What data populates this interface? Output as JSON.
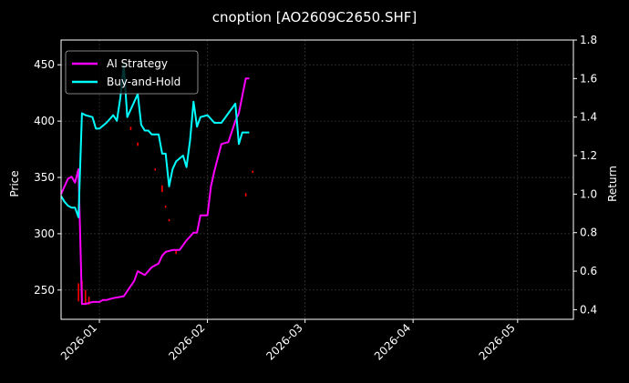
{
  "chart_data": {
    "type": "line",
    "title": "cnoption [AO2609C2650.SHF]",
    "xlabel": "",
    "ylabel": "Price",
    "y2label": "Return",
    "grid": true,
    "legend_position": "top-left",
    "xlim": [
      "2026-12-21",
      "2026-05-17"
    ],
    "ylim": [
      224,
      472
    ],
    "y2lim": [
      0.35,
      1.8
    ],
    "x_ticks": [
      "2026-01",
      "2026-02",
      "2026-03",
      "2026-04",
      "2026-05"
    ],
    "y_ticks": [
      250,
      300,
      350,
      400,
      450
    ],
    "y2_ticks": [
      "0.4",
      "0.6",
      "0.8",
      "1.0",
      "1.2",
      "1.4",
      "1.6",
      "1.8"
    ],
    "colors": {
      "ai": "#ff00ff",
      "bh": "#00ffff",
      "candle": "#ff0000",
      "grid": "#444444",
      "axis": "#ffffff"
    },
    "series": [
      {
        "name": "AI Strategy",
        "axis": "right",
        "x": [
          "2025-12-21",
          "2025-12-22",
          "2025-12-23",
          "2025-12-24",
          "2025-12-25",
          "2025-12-26",
          "2025-12-27",
          "2025-12-28",
          "2025-12-30",
          "2026-01-01",
          "2026-01-02",
          "2026-01-03",
          "2026-01-05",
          "2026-01-08",
          "2026-01-11",
          "2026-01-12",
          "2026-01-14",
          "2026-01-16",
          "2026-01-18",
          "2026-01-19",
          "2026-01-20",
          "2026-01-22",
          "2026-01-24",
          "2026-01-26",
          "2026-01-27",
          "2026-01-28",
          "2026-01-29",
          "2026-01-30",
          "2026-02-01",
          "2026-02-02",
          "2026-02-03",
          "2026-02-05",
          "2026-02-07",
          "2026-02-09",
          "2026-02-10",
          "2026-02-11",
          "2026-02-12",
          "2026-02-13"
        ],
        "values": [
          1.0,
          1.04,
          1.08,
          1.09,
          1.06,
          1.13,
          0.43,
          0.43,
          0.44,
          0.44,
          0.45,
          0.45,
          0.46,
          0.47,
          0.55,
          0.6,
          0.58,
          0.62,
          0.64,
          0.68,
          0.7,
          0.71,
          0.71,
          0.76,
          0.78,
          0.8,
          0.8,
          0.89,
          0.89,
          1.04,
          1.12,
          1.26,
          1.27,
          1.38,
          1.42,
          1.51,
          1.6,
          1.6
        ]
      },
      {
        "name": "Buy-and-Hold",
        "axis": "right",
        "x": [
          "2025-12-21",
          "2025-12-22",
          "2025-12-23",
          "2025-12-24",
          "2025-12-25",
          "2025-12-26",
          "2025-12-27",
          "2025-12-28",
          "2025-12-30",
          "2025-12-31",
          "2026-01-01",
          "2026-01-03",
          "2026-01-05",
          "2026-01-06",
          "2026-01-07",
          "2026-01-08",
          "2026-01-09",
          "2026-01-11",
          "2026-01-12",
          "2026-01-13",
          "2026-01-14",
          "2026-01-15",
          "2026-01-16",
          "2026-01-17",
          "2026-01-18",
          "2026-01-19",
          "2026-01-20",
          "2026-01-21",
          "2026-01-22",
          "2026-01-23",
          "2026-01-25",
          "2026-01-26",
          "2026-01-27",
          "2026-01-28",
          "2026-01-29",
          "2026-01-30",
          "2026-02-01",
          "2026-02-03",
          "2026-02-05",
          "2026-02-07",
          "2026-02-09",
          "2026-02-10",
          "2026-02-11",
          "2026-02-12",
          "2026-02-13"
        ],
        "values": [
          0.99,
          0.96,
          0.94,
          0.93,
          0.93,
          0.88,
          1.42,
          1.41,
          1.4,
          1.34,
          1.34,
          1.37,
          1.41,
          1.38,
          1.5,
          1.67,
          1.4,
          1.48,
          1.52,
          1.36,
          1.33,
          1.33,
          1.31,
          1.31,
          1.31,
          1.21,
          1.21,
          1.04,
          1.13,
          1.17,
          1.2,
          1.14,
          1.28,
          1.48,
          1.35,
          1.4,
          1.41,
          1.37,
          1.37,
          1.42,
          1.47,
          1.26,
          1.32,
          1.32,
          1.32
        ]
      }
    ],
    "price_marks": [
      {
        "x": "2025-12-26",
        "low": 240,
        "high": 256
      },
      {
        "x": "2025-12-27",
        "low": 241,
        "high": 258
      },
      {
        "x": "2025-12-28",
        "low": 238,
        "high": 250
      },
      {
        "x": "2025-12-29",
        "low": 237,
        "high": 244
      },
      {
        "x": "2026-01-10",
        "low": 392,
        "high": 395
      },
      {
        "x": "2026-01-12",
        "low": 378,
        "high": 381
      },
      {
        "x": "2026-01-17",
        "low": 356,
        "high": 358
      },
      {
        "x": "2026-01-19",
        "low": 337,
        "high": 343
      },
      {
        "x": "2026-01-20",
        "low": 323,
        "high": 325
      },
      {
        "x": "2026-01-21",
        "low": 311,
        "high": 313
      },
      {
        "x": "2026-01-23",
        "low": 282,
        "high": 285
      },
      {
        "x": "2026-02-12",
        "low": 333,
        "high": 336
      },
      {
        "x": "2026-02-14",
        "low": 354,
        "high": 356
      }
    ]
  }
}
